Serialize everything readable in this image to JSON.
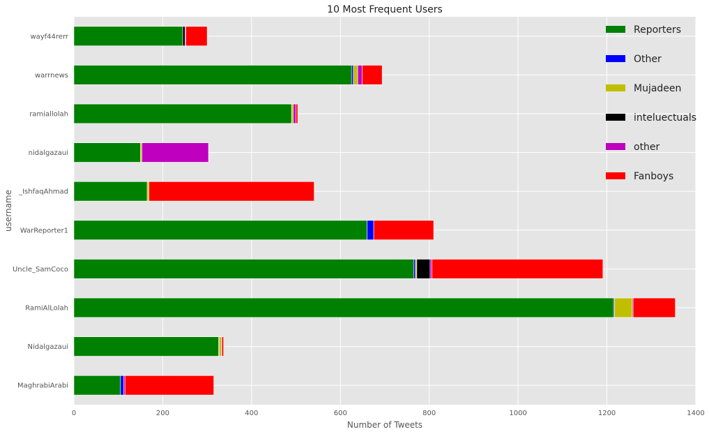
{
  "chart_data": {
    "type": "bar",
    "orientation": "horizontal",
    "stacked": true,
    "title": "10 Most Frequent Users",
    "xlabel": "Number of Tweets",
    "ylabel": "username",
    "xlim": [
      0,
      1400
    ],
    "xticks": [
      "0",
      "200",
      "400",
      "600",
      "800",
      "1000",
      "1200",
      "1400"
    ],
    "grid": true,
    "legend_position": "top-right",
    "categories": [
      "MaghrabiArabi",
      "Nidalgazaui",
      "RamiAlLolah",
      "Uncle_SamCoco",
      "WarReporter1",
      "_IshfaqAhmad",
      "nidalgazaui",
      "ramiallolah",
      "warrnews",
      "wayf44rerr"
    ],
    "series": [
      {
        "name": "Reporters",
        "color": "#008000",
        "values": [
          105,
          326,
          1215,
          765,
          660,
          165,
          150,
          490,
          625,
          245
        ]
      },
      {
        "name": "Other",
        "color": "#0000ff",
        "values": [
          7,
          1,
          2,
          4,
          15,
          0,
          0,
          0,
          4,
          0
        ]
      },
      {
        "name": "Mujadeen",
        "color": "#bfbf00",
        "values": [
          0,
          5,
          40,
          3,
          0,
          4,
          3,
          4,
          10,
          0
        ]
      },
      {
        "name": "inteluectuals",
        "color": "#000000",
        "values": [
          0,
          0,
          0,
          30,
          0,
          0,
          0,
          0,
          0,
          5
        ]
      },
      {
        "name": "other",
        "color": "#bf00bf",
        "values": [
          3,
          1,
          2,
          4,
          0,
          0,
          150,
          6,
          10,
          2
        ]
      },
      {
        "name": "Fanboys",
        "color": "#ff0000",
        "values": [
          200,
          4,
          95,
          385,
          135,
          372,
          0,
          4,
          45,
          48
        ]
      }
    ]
  }
}
